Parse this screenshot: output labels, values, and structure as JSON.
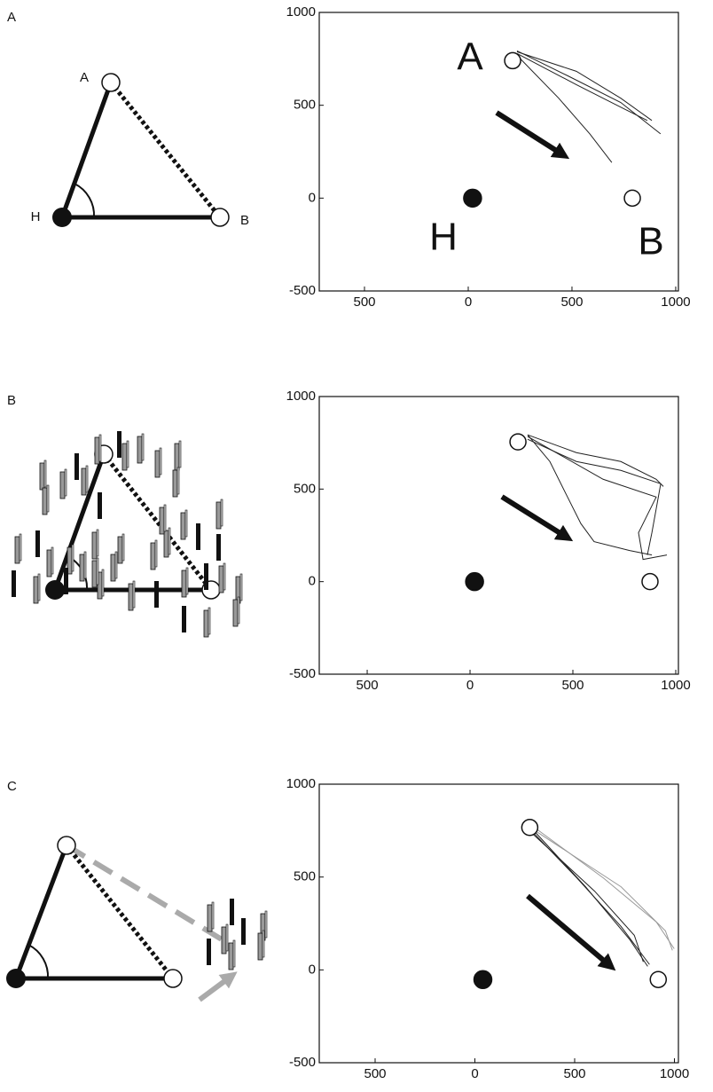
{
  "figure": {
    "panel_labels": [
      "A",
      "B",
      "C"
    ],
    "diagram_labels": [
      "A",
      "H",
      "B"
    ]
  },
  "chart_data": [
    {
      "type": "line",
      "xlim": [
        -718,
        1013
      ],
      "ylim": [
        -500,
        1000
      ],
      "xticks": [
        {
          "value": -500,
          "label": "500"
        },
        0,
        500,
        1000
      ],
      "yticks": [
        -500,
        0,
        500,
        1000
      ],
      "markers": {
        "x": [
          21,
          214,
          791
        ],
        "y": [
          0,
          740,
          0
        ],
        "filled": [
          true,
          false,
          false
        ]
      },
      "annotations": [
        "A",
        "H",
        "B"
      ],
      "series": [
        {
          "color": "#222222",
          "x": [
            235,
            479,
            735,
            927
          ],
          "y": [
            793,
            659,
            515,
            346
          ]
        },
        {
          "color": "#222222",
          "x": [
            235,
            521,
            735,
            863
          ],
          "y": [
            779,
            611,
            490,
            418
          ]
        },
        {
          "color": "#222222",
          "x": [
            235,
            436,
            586,
            692
          ],
          "y": [
            769,
            538,
            346,
            192
          ]
        },
        {
          "color": "#222222",
          "x": [
            235,
            521,
            735,
            885
          ],
          "y": [
            788,
            683,
            538,
            418
          ]
        }
      ]
    },
    {
      "type": "line",
      "xlim": [
        -733,
        1013
      ],
      "ylim": [
        -500,
        1000
      ],
      "xticks": [
        {
          "value": -500,
          "label": "500"
        },
        0,
        500,
        1000
      ],
      "yticks": [
        -500,
        0,
        500,
        1000
      ],
      "markers": {
        "x": [
          22,
          233,
          875
        ],
        "y": [
          0,
          755,
          0
        ],
        "filled": [
          true,
          false,
          false
        ]
      },
      "series": [
        {
          "color": "#222222",
          "x": [
            280,
            517,
            733,
            905,
            940
          ],
          "y": [
            793,
            697,
            649,
            553,
            514
          ]
        },
        {
          "color": "#222222",
          "x": [
            280,
            388,
            474,
            539,
            603,
            776,
            884
          ],
          "y": [
            793,
            649,
            457,
            313,
            216,
            168,
            144
          ]
        },
        {
          "color": "#222222",
          "x": [
            280,
            647,
            905,
            819,
            841,
            957
          ],
          "y": [
            784,
            553,
            457,
            264,
            120,
            144
          ]
        },
        {
          "color": "#222222",
          "x": [
            280,
            517,
            733,
            927,
            884,
            862
          ],
          "y": [
            769,
            649,
            601,
            529,
            264,
            144
          ]
        }
      ]
    },
    {
      "type": "line",
      "xlim": [
        -780,
        1020
      ],
      "ylim": [
        -500,
        1000
      ],
      "xticks": [
        {
          "value": -500,
          "label": "500"
        },
        0,
        500,
        1000
      ],
      "yticks": [
        -500,
        0,
        500,
        1000
      ],
      "markers": {
        "x": [
          40,
          275,
          919
        ],
        "y": [
          -52,
          767,
          -52
        ],
        "filled": [
          true,
          false,
          false
        ]
      },
      "series": [
        {
          "color": "#999999",
          "x": [
            311,
            644,
            910,
            999
          ],
          "y": [
            757,
            495,
            257,
            114
          ]
        },
        {
          "color": "#999999",
          "x": [
            311,
            733,
            955,
            990
          ],
          "y": [
            743,
            447,
            210,
            105
          ]
        },
        {
          "color": "#222222",
          "x": [
            289,
            555,
            777,
            866
          ],
          "y": [
            757,
            447,
            162,
            19
          ]
        },
        {
          "color": "#222222",
          "x": [
            289,
            600,
            799,
            844
          ],
          "y": [
            733,
            424,
            186,
            43
          ]
        },
        {
          "color": "#222222",
          "x": [
            289,
            511,
            733,
            875
          ],
          "y": [
            743,
            495,
            233,
            29
          ]
        }
      ]
    }
  ]
}
